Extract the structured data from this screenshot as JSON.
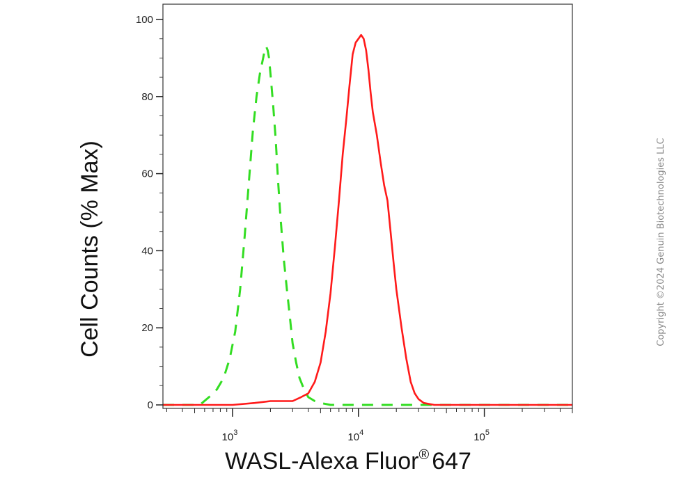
{
  "chart_data": {
    "type": "line",
    "xlabel_main": "WASL-Alexa Fluor",
    "xlabel_mark": "®",
    "xlabel_tail": "647",
    "ylabel": "Cell Counts (% Max)",
    "x_scale": "log",
    "xlim": [
      280,
      500000
    ],
    "ylim": [
      0,
      100
    ],
    "y_ticks": [
      0,
      20,
      40,
      60,
      80,
      100
    ],
    "x_major_ticks": [
      {
        "value": 1000,
        "base": "10",
        "exp": "3"
      },
      {
        "value": 10000,
        "base": "10",
        "exp": "4"
      },
      {
        "value": 100000,
        "base": "10",
        "exp": "5"
      }
    ],
    "grid": false,
    "legend": "none",
    "series": [
      {
        "color": "#33dd22",
        "dashed": true,
        "x": [
          280,
          350,
          450,
          550,
          650,
          750,
          850,
          950,
          1050,
          1150,
          1250,
          1350,
          1450,
          1550,
          1650,
          1750,
          1800,
          1850,
          1900,
          1950,
          2000,
          2100,
          2200,
          2300,
          2400,
          2550,
          2700,
          2850,
          3000,
          3200,
          3400,
          3700,
          4000,
          4500,
          5000,
          6000,
          8000,
          15000,
          50000,
          500000
        ],
        "y": [
          0,
          0,
          0,
          0,
          2,
          4,
          7,
          12,
          19,
          30,
          44,
          58,
          71,
          80,
          86,
          90,
          92,
          93,
          92,
          90,
          86,
          78,
          69,
          58,
          49,
          38,
          30,
          23,
          16,
          11,
          7,
          4,
          2,
          1,
          0.5,
          0,
          0,
          0,
          0,
          0
        ]
      },
      {
        "color": "#ff1a1a",
        "dashed": false,
        "x": [
          280,
          1000,
          1500,
          2000,
          2500,
          3000,
          3500,
          4000,
          4500,
          5000,
          5500,
          6000,
          6500,
          7000,
          7500,
          8000,
          8500,
          9000,
          9500,
          10000,
          10500,
          11000,
          11500,
          12000,
          12500,
          13000,
          14000,
          15000,
          16000,
          17000,
          18000,
          19000,
          20000,
          22000,
          24000,
          26000,
          28000,
          30000,
          33000,
          40000,
          60000,
          500000
        ],
        "y": [
          0,
          0,
          0.5,
          1,
          1,
          1,
          2,
          3,
          6,
          11,
          19,
          29,
          41,
          53,
          65,
          74,
          83,
          91,
          94,
          95,
          96,
          95,
          92,
          87,
          81,
          76,
          70,
          63,
          57,
          53,
          45,
          37,
          30,
          20,
          12,
          6,
          3,
          1.5,
          0.5,
          0,
          0,
          0
        ]
      }
    ]
  },
  "copyright": "Copyright ©2024 Genuin Biotechnologies LLC"
}
